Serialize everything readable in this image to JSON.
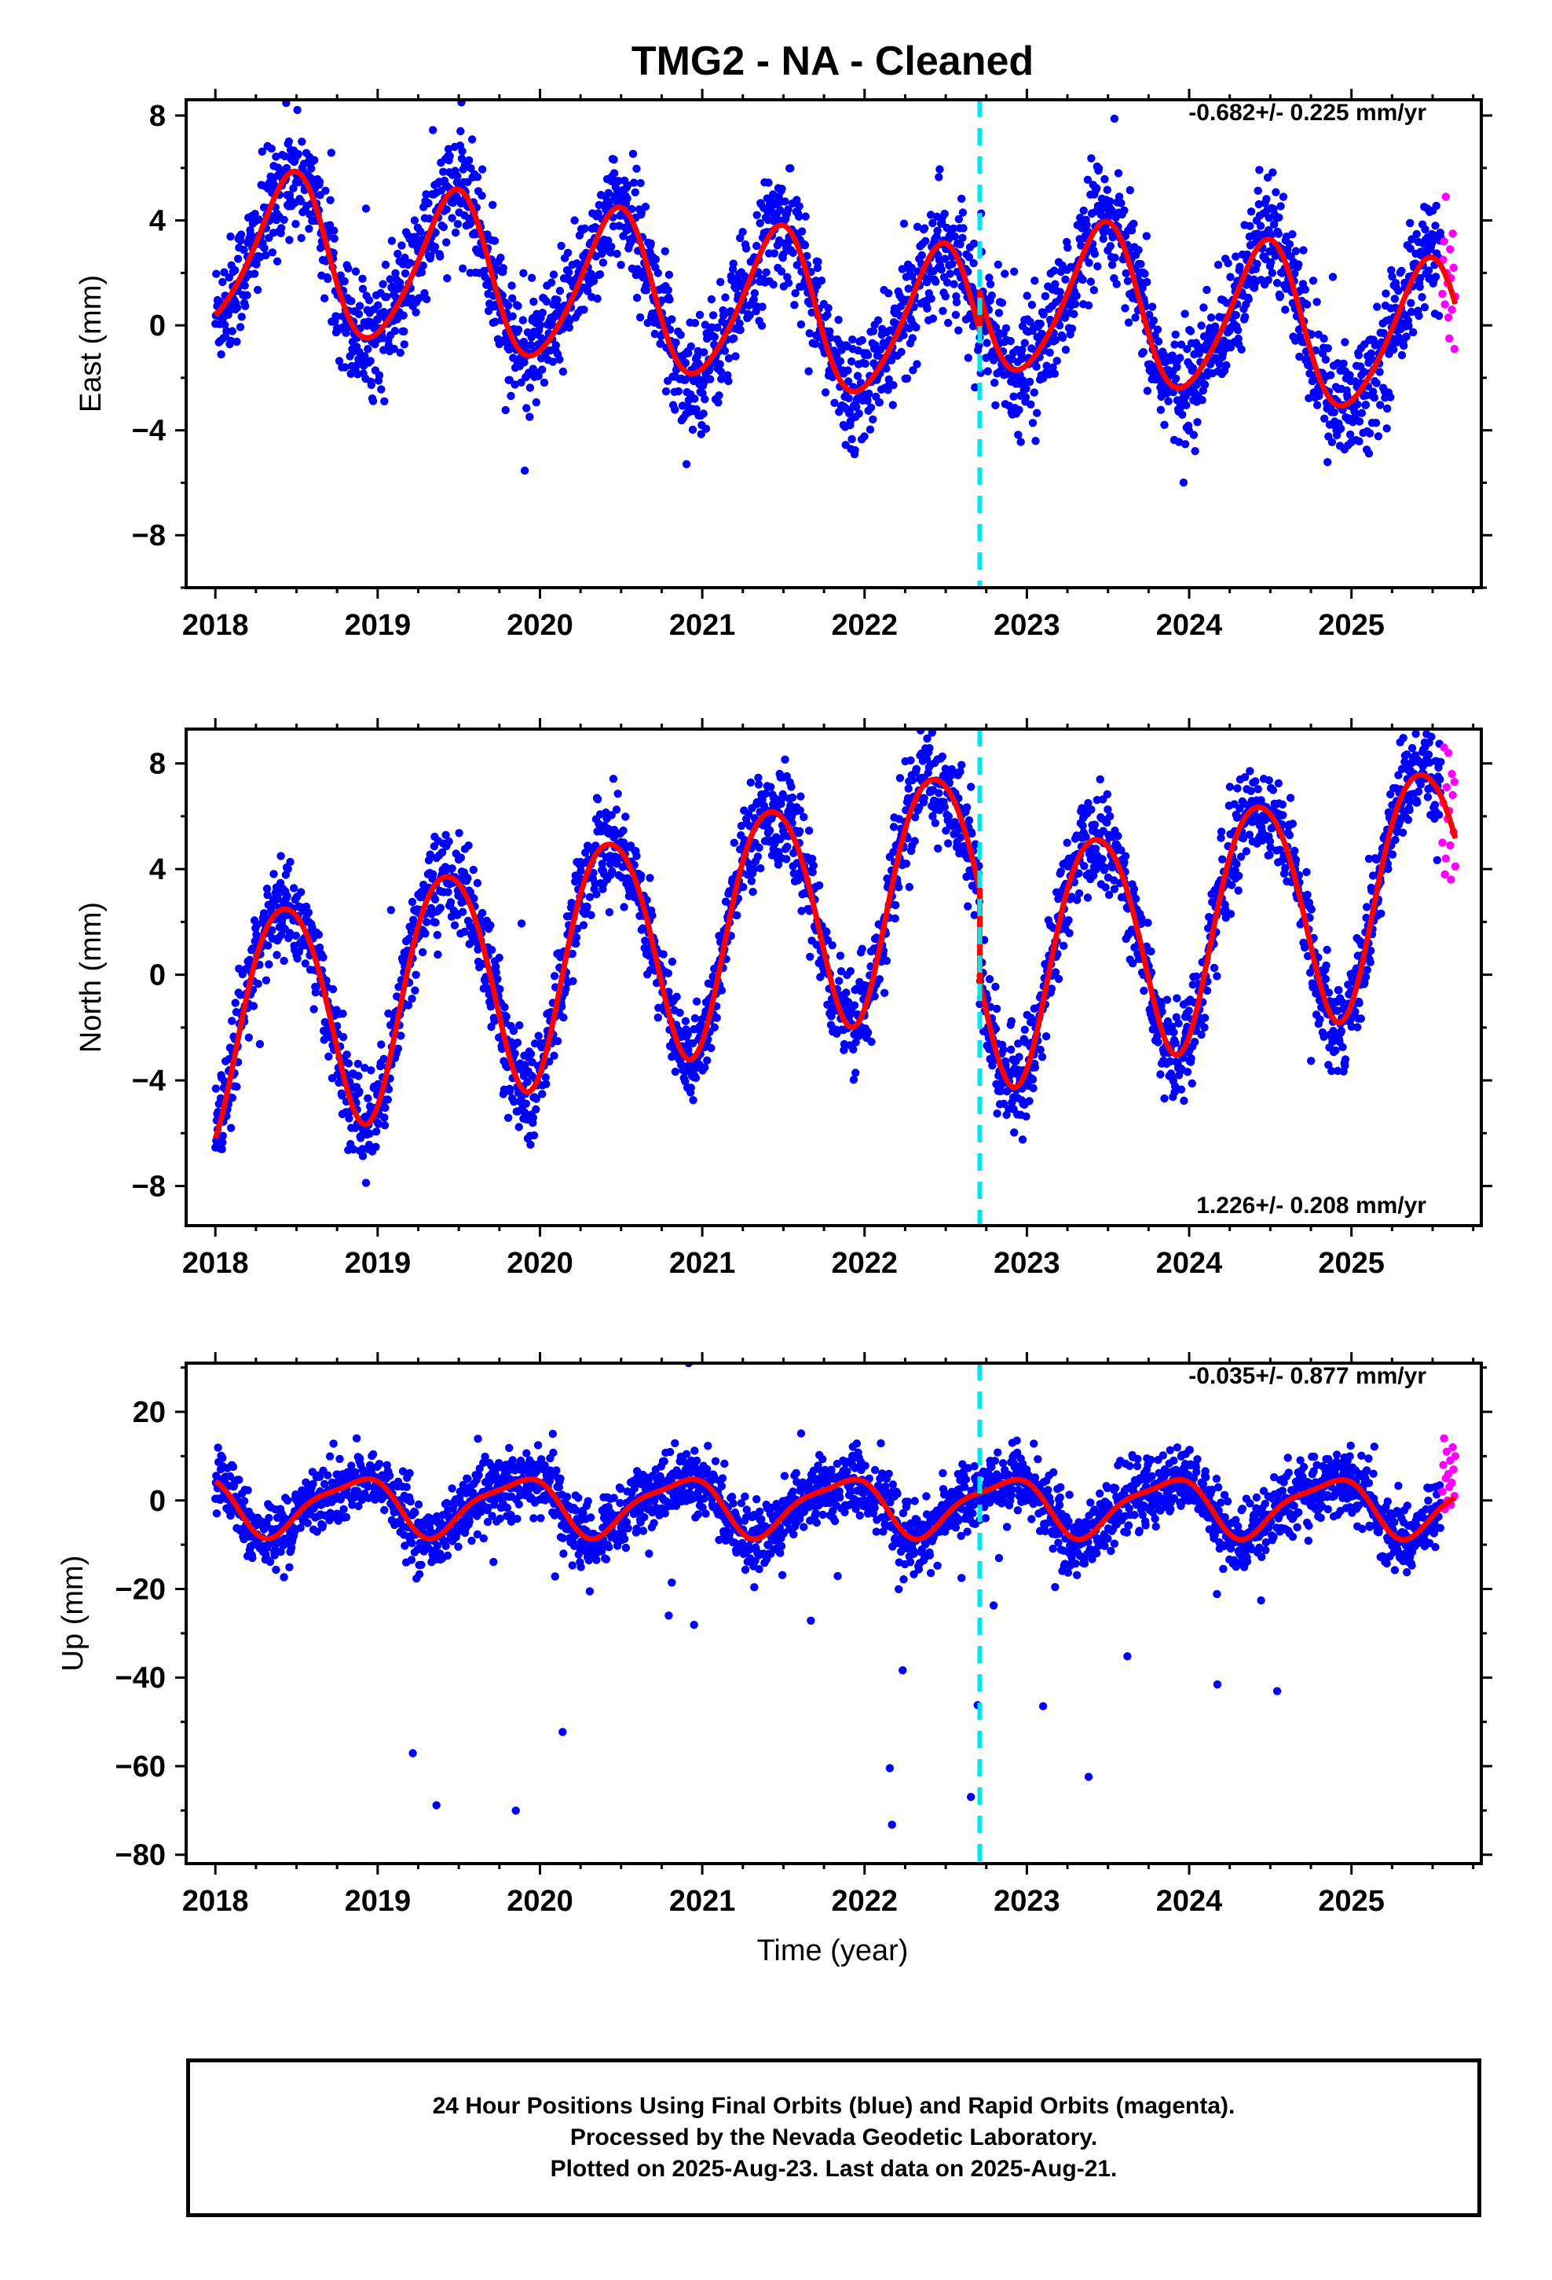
{
  "title": "TMG2  - NA - Cleaned",
  "xlabel": "Time (year)",
  "footer": {
    "line1": "24 Hour Positions Using Final Orbits (blue) and Rapid Orbits (magenta).",
    "line2": "Processed by the Nevada Geodetic Laboratory.",
    "line3": "Plotted on 2025-Aug-23. Last data on 2025-Aug-21."
  },
  "colors": {
    "final": "#0000ff",
    "rapid": "#ff00ff",
    "model": "#ff0000",
    "event": "#00e5ee"
  },
  "chart_data": [
    {
      "type": "scatter",
      "name": "east",
      "ylabel": "East (mm)",
      "rate_text": "-0.682+/- 0.225 mm/yr",
      "rate_position": "top-right",
      "xlim": [
        2017.82,
        2025.8
      ],
      "ylim": [
        -10,
        8.6
      ],
      "xticks": [
        2018,
        2019,
        2020,
        2021,
        2022,
        2023,
        2024,
        2025
      ],
      "yticks": [
        8,
        4,
        0,
        -4,
        -8
      ],
      "event_line_x": 2022.71,
      "model": {
        "rate": -0.682,
        "segments": [
          {
            "start": 2018.0,
            "end": 2022.71,
            "offset": 3.0,
            "annual_sin": 0.6,
            "annual_cos": -2.9,
            "semi_sin": 0.2,
            "semi_cos": 0.3
          },
          {
            "start": 2022.71,
            "end": 2025.64,
            "offset": 4.5,
            "annual_sin": 0.6,
            "annual_cos": -2.9,
            "semi_sin": 0.2,
            "semi_cos": 0.3
          }
        ]
      },
      "final_series": {
        "start": 2018.0,
        "end": 2025.55,
        "points": 2750,
        "noise_sd": 1.1,
        "outlier_rate": 0.01
      },
      "rapid_series": {
        "start": 2025.56,
        "end": 2025.64,
        "values": [
          1.2,
          2.5,
          3.2,
          0.8,
          4.9,
          2.0,
          1.6,
          0.3,
          -0.5,
          2.9,
          1.8,
          0.6,
          3.5,
          2.2,
          -0.9,
          1.1
        ]
      }
    },
    {
      "type": "scatter",
      "name": "north",
      "ylabel": "North (mm)",
      "rate_text": "1.226+/- 0.208 mm/yr",
      "rate_position": "bottom-right",
      "xlim": [
        2017.82,
        2025.8
      ],
      "ylim": [
        -9.5,
        9.3
      ],
      "xticks": [
        2018,
        2019,
        2020,
        2021,
        2022,
        2023,
        2024,
        2025
      ],
      "yticks": [
        8,
        4,
        0,
        -4,
        -8
      ],
      "event_line_x": 2022.71,
      "model": {
        "rate": 1.226,
        "segments": [
          {
            "start": 2018.0,
            "end": 2022.71,
            "offset": -2.0,
            "annual_sin": 2.0,
            "annual_cos": -3.9,
            "semi_sin": 0.3,
            "semi_cos": -0.3
          },
          {
            "start": 2022.71,
            "end": 2025.64,
            "offset": -5.5,
            "annual_sin": 2.0,
            "annual_cos": -3.9,
            "semi_sin": 0.3,
            "semi_cos": -0.3
          }
        ]
      },
      "final_series": {
        "start": 2018.0,
        "end": 2025.55,
        "points": 2750,
        "noise_sd": 0.9,
        "outlier_rate": 0.005
      },
      "rapid_series": {
        "start": 2025.56,
        "end": 2025.64,
        "values": [
          5.0,
          6.5,
          8.6,
          3.8,
          4.4,
          7.1,
          5.9,
          8.4,
          6.2,
          4.9,
          3.6,
          7.6,
          6.8,
          5.4,
          7.3,
          4.1
        ]
      }
    },
    {
      "type": "scatter",
      "name": "up",
      "ylabel": "Up (mm)",
      "rate_text": "-0.035+/- 0.877 mm/yr",
      "rate_position": "top-right",
      "xlim": [
        2017.82,
        2025.8
      ],
      "ylim": [
        -82,
        31
      ],
      "xticks": [
        2018,
        2019,
        2020,
        2021,
        2022,
        2023,
        2024,
        2025
      ],
      "yticks": [
        20,
        0,
        -20,
        -40,
        -60,
        -80
      ],
      "event_line_x": 2022.71,
      "model": {
        "rate": -0.035,
        "segments": [
          {
            "start": 2018.0,
            "end": 2022.71,
            "offset": -1.0,
            "annual_sin": -4.9,
            "annual_cos": 3.8,
            "semi_sin": 0.8,
            "semi_cos": 1.5
          },
          {
            "start": 2022.71,
            "end": 2025.64,
            "offset": -1.0,
            "annual_sin": -4.9,
            "annual_cos": 3.8,
            "semi_sin": 0.8,
            "semi_cos": 1.5
          }
        ]
      },
      "final_series": {
        "start": 2018.0,
        "end": 2025.55,
        "points": 2750,
        "noise_sd": 3.8,
        "outlier_rate": 0.015
      },
      "rapid_series": {
        "start": 2025.56,
        "end": 2025.64,
        "values": [
          2,
          8,
          14,
          -2,
          5,
          11,
          0,
          6,
          3,
          9,
          -1,
          4,
          12,
          7,
          1,
          10
        ]
      }
    }
  ]
}
